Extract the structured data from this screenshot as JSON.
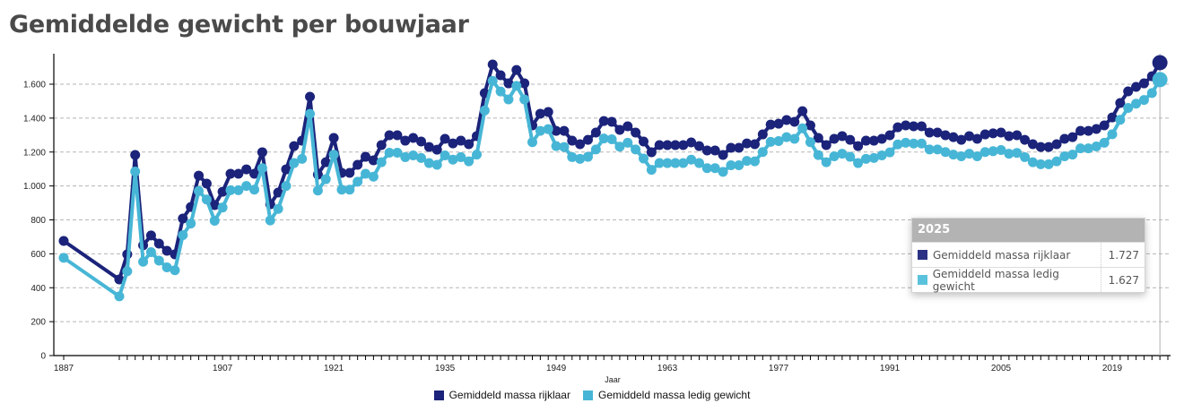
{
  "page": {
    "title": "Gemiddelde gewicht per bouwjaar"
  },
  "colors": {
    "rijklaar": "#1b237a",
    "ledig": "#47b6d6",
    "grid": "#b5b5b5",
    "crosshair": "#b0b0b0"
  },
  "tooltip": {
    "year": "2025",
    "rows": [
      {
        "label": "Gemiddeld massa rijklaar",
        "value": "1.727",
        "color": "#2a3185"
      },
      {
        "label": "Gemiddeld massa ledig gewicht",
        "value": "1.627",
        "color": "#5bc2dd"
      }
    ]
  },
  "legend": {
    "items": [
      {
        "label": "Gemiddeld massa rijklaar",
        "color": "#1b237a"
      },
      {
        "label": "Gemiddeld massa ledig gewicht",
        "color": "#47b6d6"
      }
    ]
  },
  "chart_data": {
    "type": "line",
    "title": "Gemiddelde gewicht per bouwjaar",
    "xlabel": "Jaar",
    "ylabel": "",
    "xlim": [
      1883,
      2029
    ],
    "ylim": [
      0,
      1800
    ],
    "grid": true,
    "legend_position": "bottom-center",
    "x_ticks": [
      1887,
      1907,
      1921,
      1935,
      1949,
      1963,
      1977,
      1991,
      2005,
      2019
    ],
    "y_ticks": [
      0,
      200,
      400,
      600,
      800,
      1000,
      1200,
      1400,
      1600
    ],
    "y_tick_labels": [
      "0",
      "200",
      "400",
      "600",
      "800",
      "1.000",
      "1.200",
      "1.400",
      "1.600"
    ],
    "x": [
      1887,
      1894,
      1895,
      1896,
      1897,
      1898,
      1899,
      1900,
      1901,
      1902,
      1903,
      1904,
      1905,
      1906,
      1907,
      1908,
      1909,
      1910,
      1911,
      1912,
      1913,
      1914,
      1915,
      1916,
      1917,
      1918,
      1919,
      1920,
      1921,
      1922,
      1923,
      1924,
      1925,
      1926,
      1927,
      1928,
      1929,
      1930,
      1931,
      1932,
      1933,
      1934,
      1935,
      1936,
      1937,
      1938,
      1939,
      1940,
      1941,
      1942,
      1943,
      1944,
      1945,
      1946,
      1947,
      1948,
      1949,
      1950,
      1951,
      1952,
      1953,
      1954,
      1955,
      1956,
      1957,
      1958,
      1959,
      1960,
      1961,
      1962,
      1963,
      1964,
      1965,
      1966,
      1967,
      1968,
      1969,
      1970,
      1971,
      1972,
      1973,
      1974,
      1975,
      1976,
      1977,
      1978,
      1979,
      1980,
      1981,
      1982,
      1983,
      1984,
      1985,
      1986,
      1987,
      1988,
      1989,
      1990,
      1991,
      1992,
      1993,
      1994,
      1995,
      1996,
      1997,
      1998,
      1999,
      2000,
      2001,
      2002,
      2003,
      2004,
      2005,
      2006,
      2007,
      2008,
      2009,
      2010,
      2011,
      2012,
      2013,
      2014,
      2015,
      2016,
      2017,
      2018,
      2019,
      2020,
      2021,
      2022,
      2023,
      2024,
      2025
    ],
    "series": [
      {
        "name": "Gemiddeld massa rijklaar",
        "values": [
          676,
          449,
          597,
          1183,
          650,
          708,
          660,
          618,
          597,
          808,
          876,
          1061,
          1014,
          887,
          966,
          1072,
          1072,
          1098,
          1072,
          1199,
          892,
          961,
          1098,
          1235,
          1267,
          1526,
          1067,
          1140,
          1283,
          1077,
          1077,
          1125,
          1172,
          1151,
          1241,
          1299,
          1299,
          1267,
          1283,
          1262,
          1230,
          1214,
          1278,
          1251,
          1267,
          1246,
          1294,
          1547,
          1716,
          1653,
          1605,
          1684,
          1605,
          1357,
          1426,
          1436,
          1325,
          1325,
          1267,
          1246,
          1272,
          1315,
          1383,
          1378,
          1331,
          1352,
          1315,
          1262,
          1199,
          1241,
          1241,
          1241,
          1241,
          1257,
          1235,
          1209,
          1209,
          1183,
          1225,
          1225,
          1251,
          1246,
          1304,
          1362,
          1367,
          1389,
          1378,
          1441,
          1357,
          1283,
          1241,
          1278,
          1294,
          1272,
          1235,
          1267,
          1267,
          1278,
          1299,
          1346,
          1357,
          1352,
          1352,
          1315,
          1315,
          1299,
          1288,
          1272,
          1294,
          1278,
          1304,
          1310,
          1315,
          1294,
          1299,
          1272,
          1246,
          1230,
          1230,
          1246,
          1278,
          1288,
          1325,
          1325,
          1336,
          1357,
          1404,
          1489,
          1558,
          1584,
          1605,
          1647,
          1727
        ]
      },
      {
        "name": "Gemiddeld massa ledig gewicht",
        "values": [
          576,
          349,
          497,
          1085,
          553,
          610,
          560,
          520,
          503,
          710,
          778,
          970,
          920,
          795,
          873,
          975,
          975,
          1000,
          978,
          1105,
          797,
          865,
          1000,
          1135,
          1160,
          1425,
          973,
          1040,
          1185,
          978,
          978,
          1025,
          1072,
          1055,
          1140,
          1196,
          1196,
          1170,
          1180,
          1165,
          1135,
          1125,
          1180,
          1155,
          1170,
          1145,
          1185,
          1445,
          1620,
          1557,
          1510,
          1590,
          1510,
          1258,
          1325,
          1335,
          1235,
          1230,
          1170,
          1160,
          1172,
          1215,
          1280,
          1275,
          1232,
          1255,
          1215,
          1162,
          1095,
          1135,
          1135,
          1135,
          1135,
          1155,
          1135,
          1105,
          1105,
          1083,
          1122,
          1122,
          1148,
          1145,
          1200,
          1260,
          1265,
          1288,
          1278,
          1340,
          1258,
          1182,
          1140,
          1175,
          1190,
          1172,
          1135,
          1160,
          1165,
          1180,
          1198,
          1245,
          1255,
          1250,
          1250,
          1215,
          1215,
          1200,
          1185,
          1175,
          1190,
          1175,
          1200,
          1205,
          1212,
          1190,
          1195,
          1170,
          1140,
          1128,
          1128,
          1145,
          1175,
          1185,
          1222,
          1222,
          1233,
          1255,
          1305,
          1390,
          1460,
          1485,
          1507,
          1548,
          1627
        ]
      }
    ]
  }
}
